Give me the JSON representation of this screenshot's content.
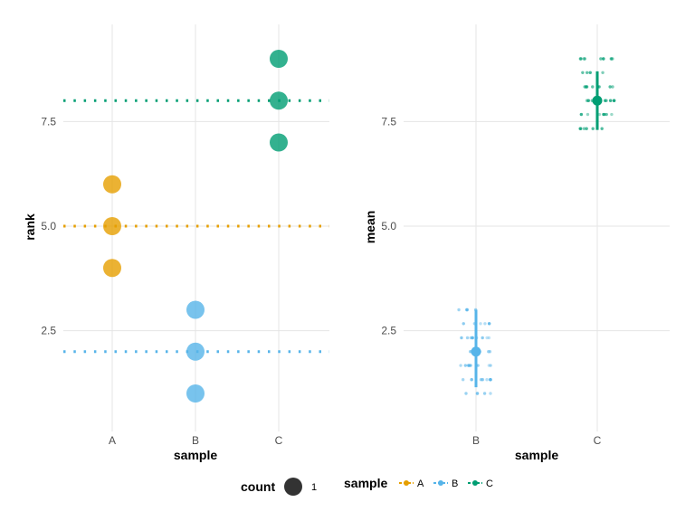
{
  "chart_data": [
    {
      "type": "scatter",
      "panel": "left",
      "xlabel": "sample",
      "ylabel": "rank",
      "categories": [
        "A",
        "B",
        "C"
      ],
      "yticks": [
        2.5,
        5.0,
        7.5
      ],
      "ytick_labels": [
        "2.5",
        "5.0",
        "7.5"
      ],
      "ylim": [
        0.55,
        9.45
      ],
      "grid": true,
      "points": [
        {
          "sample": "A",
          "rank": 4
        },
        {
          "sample": "A",
          "rank": 5
        },
        {
          "sample": "A",
          "rank": 6
        },
        {
          "sample": "B",
          "rank": 1
        },
        {
          "sample": "B",
          "rank": 2
        },
        {
          "sample": "B",
          "rank": 3
        },
        {
          "sample": "C",
          "rank": 7
        },
        {
          "sample": "C",
          "rank": 8
        },
        {
          "sample": "C",
          "rank": 9
        }
      ],
      "hlines": [
        {
          "sample": "A",
          "y": 5,
          "style": "dotted"
        },
        {
          "sample": "B",
          "y": 2,
          "style": "dotted"
        },
        {
          "sample": "C",
          "y": 8,
          "style": "dotted"
        }
      ]
    },
    {
      "type": "scatter",
      "panel": "right",
      "xlabel": "sample",
      "ylabel": "mean",
      "categories": [
        "B",
        "C"
      ],
      "yticks": [
        2.5,
        5.0,
        7.5
      ],
      "ytick_labels": [
        "2.5",
        "5.0",
        "7.5"
      ],
      "ylim": [
        0.55,
        9.45
      ],
      "grid": true,
      "summary": [
        {
          "sample": "B",
          "mean": 2.0,
          "lower": 1.15,
          "upper": 3.0
        },
        {
          "sample": "C",
          "mean": 8.0,
          "lower": 7.3,
          "upper": 8.7
        }
      ],
      "jitter_points": [
        {
          "sample": "B",
          "levels": [
            1.0,
            1.33,
            1.67,
            2.0,
            2.33,
            2.67,
            3.0
          ]
        },
        {
          "sample": "C",
          "levels": [
            7.33,
            7.67,
            8.0,
            8.33,
            8.67,
            9.0
          ]
        }
      ]
    }
  ],
  "colors": {
    "A": "#E69F00",
    "B": "#56B4E9",
    "C": "#009E73",
    "count_key": "#333333"
  },
  "legend": {
    "position": "bottom",
    "count_title": "count",
    "count_label": "1",
    "sample_title": "sample",
    "sample_items": [
      "A",
      "B",
      "C"
    ]
  }
}
